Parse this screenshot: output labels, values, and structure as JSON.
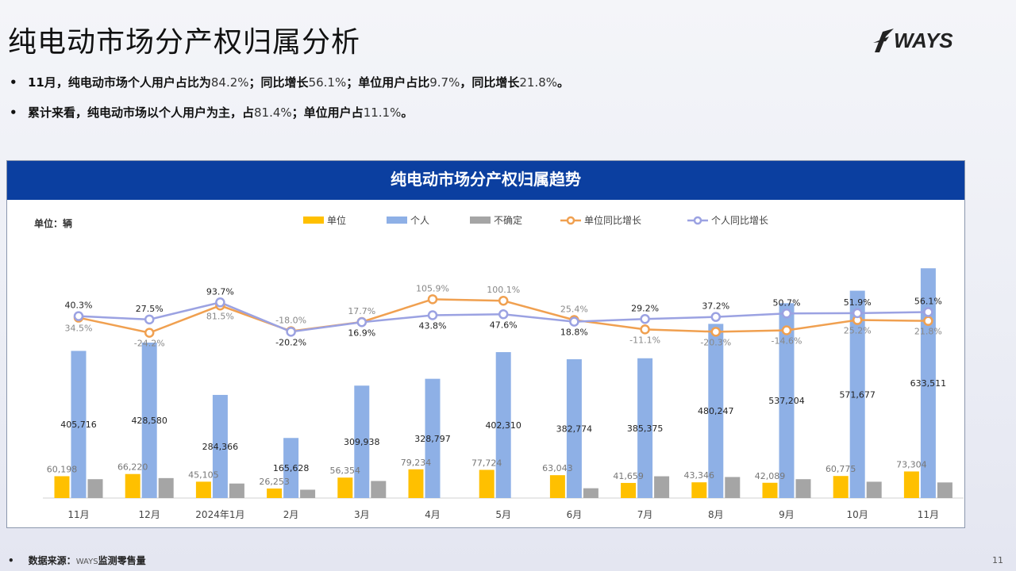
{
  "page": {
    "title": "纯电动市场分产权归属分析",
    "logo_text": "WAYS",
    "bullets": [
      [
        "11月，纯电动市场个人用户占比为",
        "84.2%",
        "；同比增长",
        "56.1%",
        "；单位用户占比",
        "9.7%",
        "，同比增长",
        "21.8%",
        "。"
      ],
      [
        "累计来看，纯电动市场以个人用户为主，占",
        "81.4%",
        "；单位用户占",
        "11.1%",
        "。"
      ]
    ],
    "footer_label": "数据来源：",
    "footer_brand": "WAYS",
    "footer_source": "监测零售量",
    "page_number": "11"
  },
  "chart_data": {
    "type": "bar",
    "title": "纯电动市场分产权归属趋势",
    "unit_label": "单位：辆",
    "categories": [
      "11月",
      "12月",
      "2024年1月",
      "2月",
      "3月",
      "4月",
      "5月",
      "6月",
      "7月",
      "8月",
      "9月",
      "10月",
      "11月"
    ],
    "series": [
      {
        "name": "单位",
        "kind": "bar",
        "color": "#ffc000",
        "values": [
          60198,
          66220,
          45105,
          26253,
          56354,
          79234,
          77724,
          63043,
          41659,
          43346,
          42089,
          60775,
          73304
        ],
        "labels": [
          "60,198",
          "66,220",
          "45,105",
          "26,253",
          "56,354",
          "79,234",
          "77,724",
          "63,043",
          "41,659",
          "43,346",
          "42,089",
          "60,775",
          "73,304"
        ]
      },
      {
        "name": "个人",
        "kind": "bar",
        "color": "#8eb0e6",
        "values": [
          405716,
          428580,
          284366,
          165628,
          309938,
          328797,
          402310,
          382774,
          385375,
          480247,
          537204,
          571677,
          633511
        ],
        "labels": [
          "405,716",
          "428,580",
          "284,366",
          "165,628",
          "309,938",
          "328,797",
          "402,310",
          "382,774",
          "385,375",
          "480,247",
          "537,204",
          "571,677",
          "633,511"
        ]
      },
      {
        "name": "不确定",
        "kind": "bar",
        "color": "#a5a5a5",
        "values": [
          52000,
          55000,
          40000,
          23000,
          47000,
          null,
          null,
          27000,
          60000,
          58000,
          52000,
          45000,
          43000
        ],
        "labels": []
      },
      {
        "name": "单位同比增长",
        "kind": "line",
        "color": "#f0a050",
        "values": [
          34.5,
          -24.2,
          81.5,
          -18.0,
          17.7,
          105.9,
          100.1,
          25.4,
          -11.1,
          -20.3,
          -14.6,
          25.2,
          21.8
        ],
        "labels": [
          "34.5%",
          "-24.2%",
          "81.5%",
          "-18.0%",
          "17.7%",
          "105.9%",
          "100.1%",
          "25.4%",
          "-11.1%",
          "-20.3%",
          "-14.6%",
          "25.2%",
          "21.8%"
        ]
      },
      {
        "name": "个人同比增长",
        "kind": "line",
        "color": "#9ba2e2",
        "values": [
          40.3,
          27.5,
          93.7,
          -20.2,
          16.9,
          43.8,
          47.6,
          18.8,
          29.2,
          37.2,
          50.7,
          51.9,
          56.1
        ],
        "labels": [
          "40.3%",
          "27.5%",
          "93.7%",
          "-20.2%",
          "16.9%",
          "43.8%",
          "47.6%",
          "18.8%",
          "29.2%",
          "37.2%",
          "50.7%",
          "51.9%",
          "56.1%"
        ]
      }
    ],
    "ylim_bars": [
      0,
      820000
    ],
    "ylim_growth": [
      -250,
      150
    ],
    "legend_position": "top-center",
    "grid": false
  }
}
